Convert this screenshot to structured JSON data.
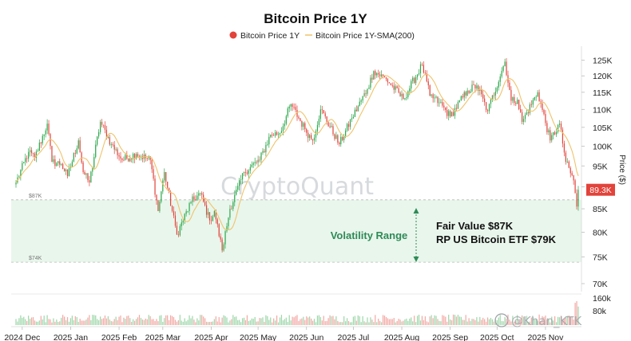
{
  "chart_data": {
    "type": "candlestick",
    "title": "Bitcoin Price 1Y",
    "legend": [
      {
        "label": "Bitcoin Price 1Y",
        "color": "#e2433a",
        "marker": "dot"
      },
      {
        "label": "Bitcoin Price 1Y-SMA(200)",
        "color": "#f0c36a",
        "marker": "line"
      }
    ],
    "ylabel": "Price ($)",
    "y_scale": "log",
    "ylim": [
      70000,
      128000
    ],
    "y_ticks": [
      {
        "label": "125K",
        "value": 125000
      },
      {
        "label": "120K",
        "value": 120000
      },
      {
        "label": "115K",
        "value": 115000
      },
      {
        "label": "110K",
        "value": 110000
      },
      {
        "label": "105K",
        "value": 105000
      },
      {
        "label": "100K",
        "value": 100000
      },
      {
        "label": "95K",
        "value": 95000
      },
      {
        "label": "90K",
        "value": 90000
      },
      {
        "label": "85K",
        "value": 85000
      },
      {
        "label": "80K",
        "value": 80000
      },
      {
        "label": "75K",
        "value": 75000
      },
      {
        "label": "70K",
        "value": 70000
      }
    ],
    "x_ticks": [
      "2024 Dec",
      "2025 Jan",
      "2025 Feb",
      "2025 Mar",
      "2025 Apr",
      "2025 May",
      "2025 Jun",
      "2025 Jul",
      "2025 Aug",
      "2025 Sep",
      "2025 Oct",
      "2025 Nov"
    ],
    "up_color": "#2aa84a",
    "down_color": "#e2433a",
    "sma_color": "#f0c36a",
    "range_fill": "#e9f6ec",
    "current_price_label": "89.3K",
    "current_price": 89300,
    "volume_labels": [
      "160k",
      "80k"
    ],
    "annotations": {
      "upper_line_label": "$87K",
      "upper_line_value": 87000,
      "lower_line_label": "$74K",
      "lower_line_value": 74000,
      "volatility_label": "Volatility Range",
      "fair_value_label": "Fair Value $87K",
      "etf_label": "RP US Bitcoin ETF $79K"
    },
    "watermark": "CryptoQuant",
    "corner_watermark": "@Khan_KTK",
    "price_anchors": [
      [
        "2024-11-27",
        91000
      ],
      [
        "2024-12-05",
        98500
      ],
      [
        "2024-12-09",
        97000
      ],
      [
        "2024-12-17",
        106000
      ],
      [
        "2024-12-20",
        96000
      ],
      [
        "2024-12-26",
        95500
      ],
      [
        "2024-12-30",
        92500
      ],
      [
        "2025-01-06",
        101500
      ],
      [
        "2025-01-09",
        93500
      ],
      [
        "2025-01-13",
        91000
      ],
      [
        "2025-01-20",
        106500
      ],
      [
        "2025-01-27",
        100500
      ],
      [
        "2025-02-03",
        96500
      ],
      [
        "2025-02-12",
        98000
      ],
      [
        "2025-02-21",
        96500
      ],
      [
        "2025-02-26",
        84500
      ],
      [
        "2025-03-02",
        93500
      ],
      [
        "2025-03-10",
        79500
      ],
      [
        "2025-03-19",
        86500
      ],
      [
        "2025-03-25",
        88500
      ],
      [
        "2025-03-31",
        82500
      ],
      [
        "2025-04-03",
        84500
      ],
      [
        "2025-04-08",
        76300
      ],
      [
        "2025-04-13",
        85000
      ],
      [
        "2025-04-22",
        93500
      ],
      [
        "2025-05-02",
        96500
      ],
      [
        "2025-05-09",
        103000
      ],
      [
        "2025-05-15",
        103500
      ],
      [
        "2025-05-22",
        111500
      ],
      [
        "2025-05-31",
        104500
      ],
      [
        "2025-06-05",
        101500
      ],
      [
        "2025-06-10",
        110000
      ],
      [
        "2025-06-22",
        100500
      ],
      [
        "2025-06-30",
        107500
      ],
      [
        "2025-07-10",
        116000
      ],
      [
        "2025-07-14",
        121500
      ],
      [
        "2025-07-22",
        119000
      ],
      [
        "2025-08-02",
        113000
      ],
      [
        "2025-08-14",
        123500
      ],
      [
        "2025-08-19",
        114000
      ],
      [
        "2025-08-25",
        112000
      ],
      [
        "2025-09-01",
        108000
      ],
      [
        "2025-09-12",
        115500
      ],
      [
        "2025-09-18",
        117000
      ],
      [
        "2025-09-25",
        109500
      ],
      [
        "2025-10-06",
        124500
      ],
      [
        "2025-10-10",
        112500
      ],
      [
        "2025-10-14",
        112800
      ],
      [
        "2025-10-17",
        106500
      ],
      [
        "2025-10-27",
        115000
      ],
      [
        "2025-11-04",
        101500
      ],
      [
        "2025-11-10",
        106000
      ],
      [
        "2025-11-14",
        96000
      ],
      [
        "2025-11-19",
        91500
      ],
      [
        "2025-11-21",
        85500
      ],
      [
        "2025-11-22",
        89300
      ]
    ]
  }
}
